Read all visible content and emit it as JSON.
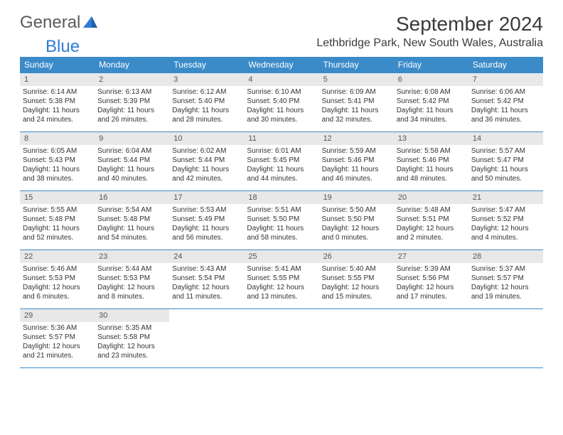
{
  "logo": {
    "text1": "General",
    "text2": "Blue"
  },
  "title": "September 2024",
  "subtitle": "Lethbridge Park, New South Wales, Australia",
  "colors": {
    "header_bg": "#3b8bc9",
    "header_text": "#ffffff",
    "daynum_bg": "#e8e8e8",
    "border": "#3b8bc9",
    "logo_gray": "#5a5a5a",
    "logo_blue": "#2e7cd6"
  },
  "day_labels": [
    "Sunday",
    "Monday",
    "Tuesday",
    "Wednesday",
    "Thursday",
    "Friday",
    "Saturday"
  ],
  "weeks": [
    [
      {
        "n": "1",
        "sr": "Sunrise: 6:14 AM",
        "ss": "Sunset: 5:38 PM",
        "dl": "Daylight: 11 hours and 24 minutes."
      },
      {
        "n": "2",
        "sr": "Sunrise: 6:13 AM",
        "ss": "Sunset: 5:39 PM",
        "dl": "Daylight: 11 hours and 26 minutes."
      },
      {
        "n": "3",
        "sr": "Sunrise: 6:12 AM",
        "ss": "Sunset: 5:40 PM",
        "dl": "Daylight: 11 hours and 28 minutes."
      },
      {
        "n": "4",
        "sr": "Sunrise: 6:10 AM",
        "ss": "Sunset: 5:40 PM",
        "dl": "Daylight: 11 hours and 30 minutes."
      },
      {
        "n": "5",
        "sr": "Sunrise: 6:09 AM",
        "ss": "Sunset: 5:41 PM",
        "dl": "Daylight: 11 hours and 32 minutes."
      },
      {
        "n": "6",
        "sr": "Sunrise: 6:08 AM",
        "ss": "Sunset: 5:42 PM",
        "dl": "Daylight: 11 hours and 34 minutes."
      },
      {
        "n": "7",
        "sr": "Sunrise: 6:06 AM",
        "ss": "Sunset: 5:42 PM",
        "dl": "Daylight: 11 hours and 36 minutes."
      }
    ],
    [
      {
        "n": "8",
        "sr": "Sunrise: 6:05 AM",
        "ss": "Sunset: 5:43 PM",
        "dl": "Daylight: 11 hours and 38 minutes."
      },
      {
        "n": "9",
        "sr": "Sunrise: 6:04 AM",
        "ss": "Sunset: 5:44 PM",
        "dl": "Daylight: 11 hours and 40 minutes."
      },
      {
        "n": "10",
        "sr": "Sunrise: 6:02 AM",
        "ss": "Sunset: 5:44 PM",
        "dl": "Daylight: 11 hours and 42 minutes."
      },
      {
        "n": "11",
        "sr": "Sunrise: 6:01 AM",
        "ss": "Sunset: 5:45 PM",
        "dl": "Daylight: 11 hours and 44 minutes."
      },
      {
        "n": "12",
        "sr": "Sunrise: 5:59 AM",
        "ss": "Sunset: 5:46 PM",
        "dl": "Daylight: 11 hours and 46 minutes."
      },
      {
        "n": "13",
        "sr": "Sunrise: 5:58 AM",
        "ss": "Sunset: 5:46 PM",
        "dl": "Daylight: 11 hours and 48 minutes."
      },
      {
        "n": "14",
        "sr": "Sunrise: 5:57 AM",
        "ss": "Sunset: 5:47 PM",
        "dl": "Daylight: 11 hours and 50 minutes."
      }
    ],
    [
      {
        "n": "15",
        "sr": "Sunrise: 5:55 AM",
        "ss": "Sunset: 5:48 PM",
        "dl": "Daylight: 11 hours and 52 minutes."
      },
      {
        "n": "16",
        "sr": "Sunrise: 5:54 AM",
        "ss": "Sunset: 5:48 PM",
        "dl": "Daylight: 11 hours and 54 minutes."
      },
      {
        "n": "17",
        "sr": "Sunrise: 5:53 AM",
        "ss": "Sunset: 5:49 PM",
        "dl": "Daylight: 11 hours and 56 minutes."
      },
      {
        "n": "18",
        "sr": "Sunrise: 5:51 AM",
        "ss": "Sunset: 5:50 PM",
        "dl": "Daylight: 11 hours and 58 minutes."
      },
      {
        "n": "19",
        "sr": "Sunrise: 5:50 AM",
        "ss": "Sunset: 5:50 PM",
        "dl": "Daylight: 12 hours and 0 minutes."
      },
      {
        "n": "20",
        "sr": "Sunrise: 5:48 AM",
        "ss": "Sunset: 5:51 PM",
        "dl": "Daylight: 12 hours and 2 minutes."
      },
      {
        "n": "21",
        "sr": "Sunrise: 5:47 AM",
        "ss": "Sunset: 5:52 PM",
        "dl": "Daylight: 12 hours and 4 minutes."
      }
    ],
    [
      {
        "n": "22",
        "sr": "Sunrise: 5:46 AM",
        "ss": "Sunset: 5:53 PM",
        "dl": "Daylight: 12 hours and 6 minutes."
      },
      {
        "n": "23",
        "sr": "Sunrise: 5:44 AM",
        "ss": "Sunset: 5:53 PM",
        "dl": "Daylight: 12 hours and 8 minutes."
      },
      {
        "n": "24",
        "sr": "Sunrise: 5:43 AM",
        "ss": "Sunset: 5:54 PM",
        "dl": "Daylight: 12 hours and 11 minutes."
      },
      {
        "n": "25",
        "sr": "Sunrise: 5:41 AM",
        "ss": "Sunset: 5:55 PM",
        "dl": "Daylight: 12 hours and 13 minutes."
      },
      {
        "n": "26",
        "sr": "Sunrise: 5:40 AM",
        "ss": "Sunset: 5:55 PM",
        "dl": "Daylight: 12 hours and 15 minutes."
      },
      {
        "n": "27",
        "sr": "Sunrise: 5:39 AM",
        "ss": "Sunset: 5:56 PM",
        "dl": "Daylight: 12 hours and 17 minutes."
      },
      {
        "n": "28",
        "sr": "Sunrise: 5:37 AM",
        "ss": "Sunset: 5:57 PM",
        "dl": "Daylight: 12 hours and 19 minutes."
      }
    ],
    [
      {
        "n": "29",
        "sr": "Sunrise: 5:36 AM",
        "ss": "Sunset: 5:57 PM",
        "dl": "Daylight: 12 hours and 21 minutes."
      },
      {
        "n": "30",
        "sr": "Sunrise: 5:35 AM",
        "ss": "Sunset: 5:58 PM",
        "dl": "Daylight: 12 hours and 23 minutes."
      },
      {
        "empty": true
      },
      {
        "empty": true
      },
      {
        "empty": true
      },
      {
        "empty": true
      },
      {
        "empty": true
      }
    ]
  ]
}
